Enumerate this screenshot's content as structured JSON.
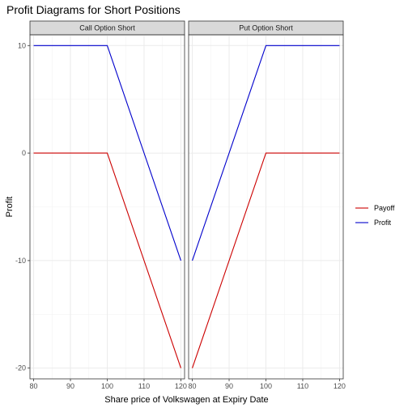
{
  "chart_data": {
    "type": "line",
    "title": "Profit Diagrams for Short Positions",
    "xlabel": "Share price of Volkswagen at Expiry Date",
    "ylabel": "Profit",
    "xlim": [
      79,
      121
    ],
    "ylim": [
      -21,
      11
    ],
    "x_ticks": [
      80,
      90,
      100,
      110,
      120
    ],
    "y_ticks": [
      -20,
      -10,
      0,
      10
    ],
    "grid": true,
    "legend_position": "right",
    "legend": [
      {
        "name": "Payoff",
        "color": "#cc0000"
      },
      {
        "name": "Profit",
        "color": "#0000cc"
      }
    ],
    "panels": [
      {
        "name": "Call Option Short",
        "series": [
          {
            "name": "Payoff",
            "color": "#cc0000",
            "x": [
              80,
              100,
              120
            ],
            "y": [
              0,
              0,
              -20
            ]
          },
          {
            "name": "Profit",
            "color": "#0000cc",
            "x": [
              80,
              100,
              120
            ],
            "y": [
              10,
              10,
              -10
            ]
          }
        ]
      },
      {
        "name": "Put Option Short",
        "series": [
          {
            "name": "Payoff",
            "color": "#cc0000",
            "x": [
              80,
              100,
              120
            ],
            "y": [
              -20,
              0,
              0
            ]
          },
          {
            "name": "Profit",
            "color": "#0000cc",
            "x": [
              80,
              100,
              120
            ],
            "y": [
              -10,
              10,
              10
            ]
          }
        ]
      }
    ]
  }
}
